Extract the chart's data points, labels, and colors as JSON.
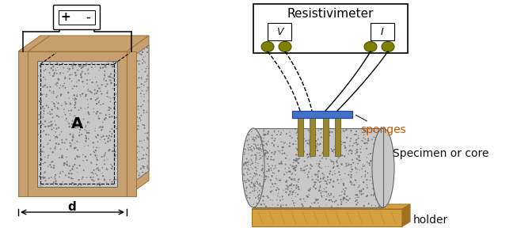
{
  "bg_color": "#ffffff",
  "concrete_color": "#c8c8c8",
  "speckle_color": "#777777",
  "sandy_color": "#C8A070",
  "sandy_dark": "#A07840",
  "holder_color": "#D4A040",
  "holder_dark": "#A07020",
  "rod_color": "#9A8830",
  "sponge_color": "#4472C4",
  "sponge_dark": "#2244AA",
  "wire_dark": "#000000",
  "olive_color": "#808000",
  "text_orange": "#C05800",
  "text_dark": "#111111",
  "title_resistivimeter": "Resistivimeter",
  "label_sponges": "sponges",
  "label_specimen": "Specimen or core",
  "label_holder": "holder",
  "label_A": "A",
  "label_d": "d",
  "label_plus": "+",
  "label_minus": "-",
  "label_V": "V",
  "label_I": "I"
}
